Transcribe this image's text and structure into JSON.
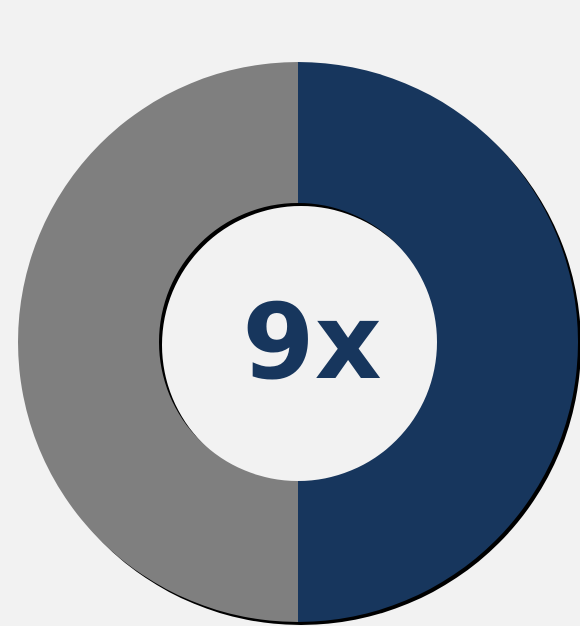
{
  "chart_data": {
    "type": "donut",
    "values": [
      50,
      50
    ],
    "colors": [
      "#17365d",
      "#7f7f7f"
    ],
    "center_label": "9x",
    "shadow": true
  }
}
